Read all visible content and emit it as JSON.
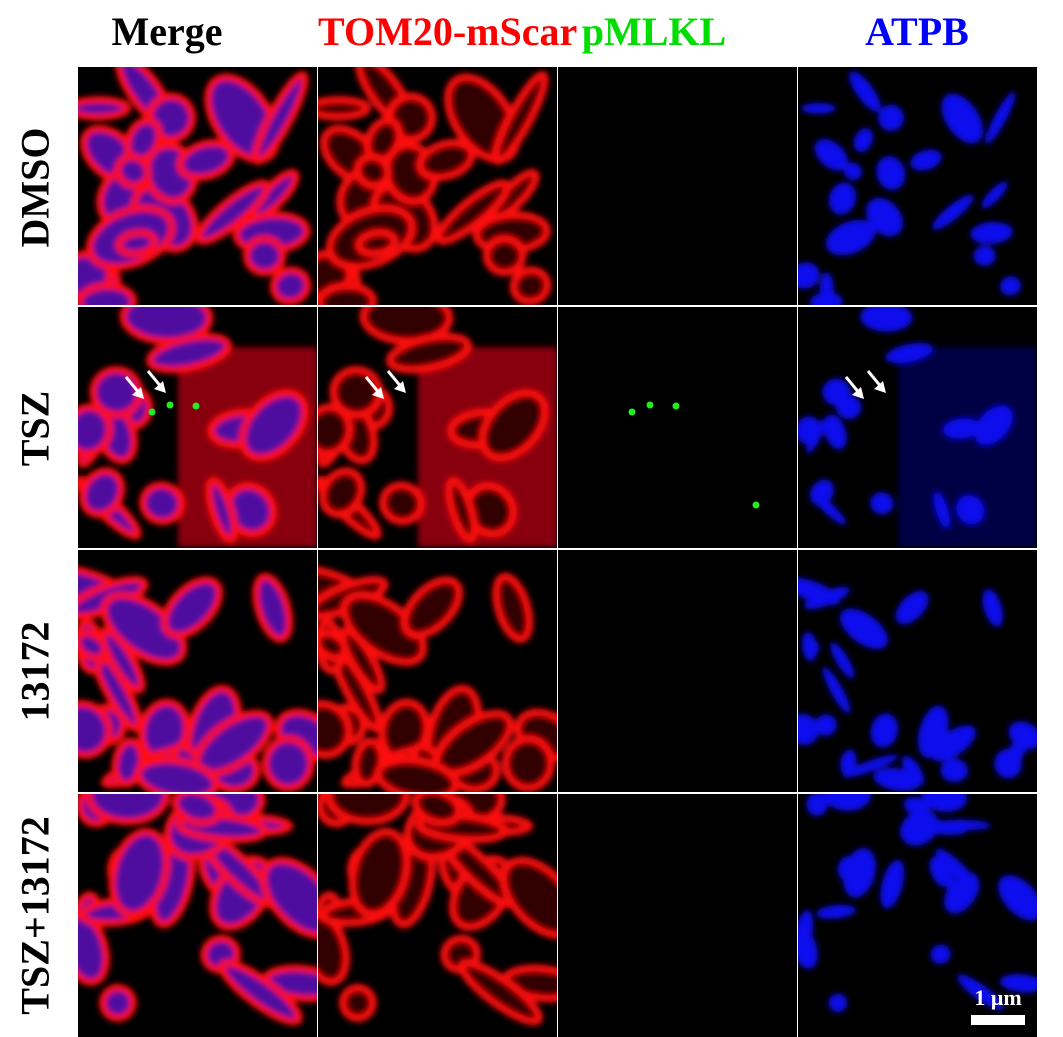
{
  "columns": [
    {
      "label": "Merge",
      "color": "#000000"
    },
    {
      "label": "TOM20-mScar",
      "color": "#ff0000"
    },
    {
      "label": "pMLKL",
      "color": "#00dd00"
    },
    {
      "label": "ATPB",
      "color": "#0000ff"
    }
  ],
  "rows": [
    {
      "label": "DMSO"
    },
    {
      "label": "TSZ"
    },
    {
      "label": "13172"
    },
    {
      "label": "TSZ+13172"
    }
  ],
  "annotations": {
    "arrows_row": "TSZ",
    "arrow_icon": "white-arrow-icon",
    "pmlkl_puncta_row": "TSZ"
  },
  "scale_bar": {
    "label": "1 μm"
  }
}
